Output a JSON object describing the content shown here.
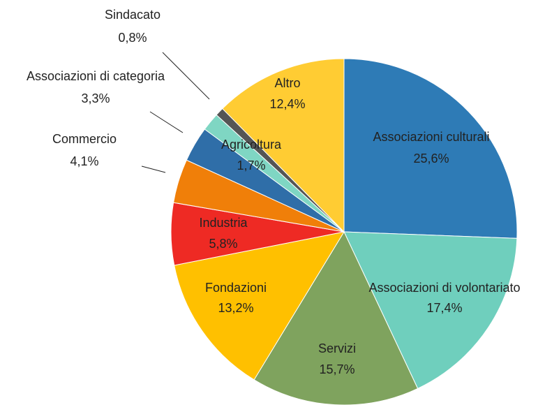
{
  "chart_data": {
    "type": "pie",
    "categories": [
      "Associazioni culturali",
      "Associazioni di volontariato",
      "Servizi",
      "Fondazioni",
      "Industria",
      "Commercio",
      "Associazioni di categoria",
      "Agricoltura",
      "Sindacato",
      "Altro"
    ],
    "values": [
      25.6,
      17.4,
      15.7,
      13.2,
      5.8,
      4.1,
      3.3,
      1.7,
      0.8,
      12.4
    ],
    "value_labels": [
      "25,6%",
      "17,4%",
      "15,7%",
      "13,2%",
      "5,8%",
      "4,1%",
      "3,3%",
      "1,7%",
      "0,8%",
      "12,4%"
    ],
    "colors": [
      "#2e7bb6",
      "#6fcfbd",
      "#7fa35e",
      "#ffc000",
      "#ee2a24",
      "#f07f09",
      "#2f6ea8",
      "#7fd6c3",
      "#555555",
      "#ffcc33"
    ]
  }
}
